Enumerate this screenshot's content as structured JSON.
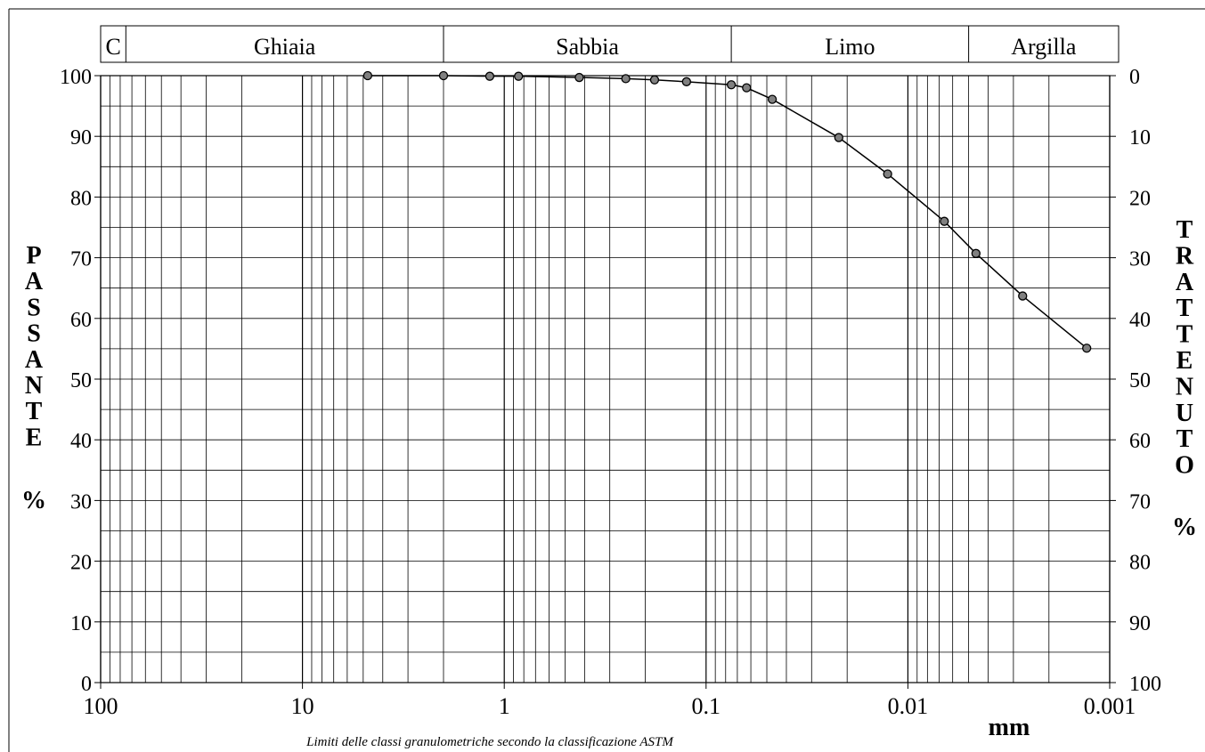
{
  "chart_data": {
    "type": "scatter",
    "x_scale": "log",
    "x_reversed": true,
    "xlim": [
      100,
      0.001
    ],
    "ylim": [
      0,
      100
    ],
    "x_ticks": [
      100,
      10,
      1,
      0.1,
      0.01,
      0.001
    ],
    "x_tick_labels": [
      "100",
      "10",
      "1",
      "0.1",
      "0.01",
      "0.001"
    ],
    "y_ticks": [
      0,
      10,
      20,
      30,
      40,
      50,
      60,
      70,
      80,
      90,
      100
    ],
    "y_tick_labels": [
      "0",
      "10",
      "20",
      "30",
      "40",
      "50",
      "60",
      "70",
      "80",
      "90",
      "100"
    ],
    "y2_tick_labels": [
      "100",
      "90",
      "80",
      "70",
      "60",
      "50",
      "40",
      "30",
      "20",
      "10",
      "0"
    ],
    "xlabel": "mm",
    "ylabel": "PASSANTE",
    "ylabel_unit": "%",
    "y2label": "TRATTENUTO",
    "y2label_unit": "%",
    "grid": true,
    "legend": "none",
    "footnote": "Limiti delle classi granulometriche secondo la classificazione ASTM",
    "classes": [
      {
        "label": "C",
        "from": 100,
        "to": 75
      },
      {
        "label": "Ghiaia",
        "from": 75,
        "to": 2
      },
      {
        "label": "Sabbia",
        "from": 2,
        "to": 0.075
      },
      {
        "label": "Limo",
        "from": 0.075,
        "to": 0.005
      },
      {
        "label": "Argilla",
        "from": 0.005,
        "to": 0.001
      }
    ],
    "series": [
      {
        "x": [
          4.75,
          2.0,
          1.18,
          0.85,
          0.425,
          0.25,
          0.18,
          0.125,
          0.075,
          0.063,
          0.047,
          0.022,
          0.0126,
          0.0066,
          0.0046,
          0.0027,
          0.0013
        ],
        "y": [
          100,
          100,
          99.9,
          99.9,
          99.7,
          99.5,
          99.3,
          99.0,
          98.5,
          98.0,
          96.1,
          89.8,
          83.8,
          76.0,
          70.7,
          63.7,
          55.1
        ]
      }
    ]
  },
  "colors": {
    "line": "#000000",
    "marker_fill": "#808080",
    "grid": "#000000",
    "background": "#ffffff"
  }
}
